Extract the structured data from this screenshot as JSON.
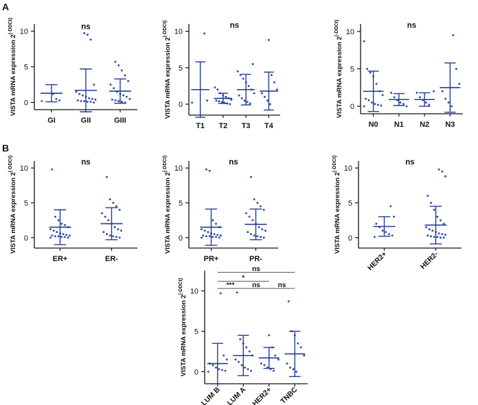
{
  "figure": {
    "panel_labels": [
      "A",
      "B"
    ],
    "ylabel_main": "VISTA mRNA expression 2",
    "ylabel_sup": "(-DDCt)",
    "colors": {
      "points": "#3a4fa8",
      "summary": "#1f3a93",
      "axis": "#111111",
      "sig_line": "#555555"
    }
  },
  "chart_data": [
    {
      "type": "scatter",
      "panel": "A",
      "categories": [
        "GI",
        "GII",
        "GIII"
      ],
      "ylim": [
        -1,
        11
      ],
      "yticks": [
        0,
        5,
        10
      ],
      "yaxis_label": "VISTA mRNA expression 2^(-DDCt)",
      "means": [
        1.3,
        1.7,
        1.6
      ],
      "sd": [
        1.2,
        3.0,
        1.7
      ],
      "points": [
        [
          0.2,
          0.3,
          0.5,
          1.2
        ],
        [
          0.0,
          0.1,
          0.1,
          0.2,
          0.2,
          0.3,
          0.4,
          0.5,
          0.6,
          0.8,
          1.0,
          1.2,
          1.5,
          2.5,
          8.8,
          9.5,
          9.7
        ],
        [
          0.0,
          0.1,
          0.2,
          0.3,
          0.4,
          0.5,
          0.8,
          1.0,
          1.2,
          1.5,
          2.0,
          2.5,
          3.0,
          3.8,
          4.5,
          5.2,
          5.7
        ]
      ],
      "annotations": [
        {
          "text": "ns",
          "x_index": 1,
          "y": 10.3
        }
      ]
    },
    {
      "type": "scatter",
      "panel": "A",
      "categories": [
        "T1",
        "T2",
        "T3",
        "T4"
      ],
      "ylim": [
        -1.5,
        11
      ],
      "yticks": [
        0,
        5,
        10
      ],
      "yaxis_label": "VISTA mRNA expression 2^(-DDCt)",
      "means": [
        2.0,
        0.8,
        2.0,
        1.8
      ],
      "sd": [
        3.8,
        0.7,
        2.1,
        2.6
      ],
      "points": [
        [
          0.2,
          0.5,
          9.7
        ],
        [
          0.0,
          0.1,
          0.2,
          0.3,
          0.4,
          0.5,
          0.6,
          0.8,
          1.0,
          1.2,
          1.5,
          2.0,
          2.3
        ],
        [
          0.1,
          0.3,
          0.5,
          0.8,
          1.2,
          1.5,
          2.0,
          2.5,
          3.0,
          3.5,
          4.0,
          4.5,
          5.5
        ],
        [
          0.0,
          0.5,
          1.0,
          1.5,
          2.0,
          3.0,
          4.0,
          8.8
        ]
      ],
      "annotations": [
        {
          "text": "ns",
          "x_index": 1.5,
          "y": 10.5
        }
      ]
    },
    {
      "type": "scatter",
      "panel": "A",
      "categories": [
        "N0",
        "N1",
        "N2",
        "N3"
      ],
      "ylim": [
        -1,
        11
      ],
      "yticks": [
        0,
        5,
        10
      ],
      "yaxis_label": "VISTA mRNA expression 2^(-DDCt)",
      "means": [
        2.0,
        0.9,
        0.9,
        2.5
      ],
      "sd": [
        2.7,
        0.8,
        0.9,
        3.3
      ],
      "points": [
        [
          0.0,
          0.1,
          0.2,
          0.3,
          0.5,
          0.8,
          1.0,
          1.5,
          2.0,
          3.0,
          4.0,
          4.5,
          5.0,
          8.7
        ],
        [
          0.0,
          0.3,
          0.5,
          0.8,
          1.2,
          1.8
        ],
        [
          0.2,
          0.5,
          0.8,
          1.2,
          1.8,
          2.0
        ],
        [
          0.0,
          0.5,
          1.0,
          2.0,
          3.0,
          5.0,
          9.5
        ]
      ],
      "annotations": [
        {
          "text": "ns",
          "x_index": 1.5,
          "y": 10.5
        }
      ]
    },
    {
      "type": "scatter",
      "panel": "B",
      "categories": [
        "ER+",
        "ER-"
      ],
      "ylim": [
        -1.5,
        11
      ],
      "yticks": [
        0,
        5,
        10
      ],
      "yaxis_label": "VISTA mRNA expression 2^(-DDCt)",
      "means": [
        1.5,
        2.0
      ],
      "sd": [
        2.5,
        2.3
      ],
      "points": [
        [
          0.0,
          0.0,
          0.1,
          0.1,
          0.2,
          0.2,
          0.3,
          0.3,
          0.4,
          0.5,
          0.6,
          0.8,
          1.0,
          1.2,
          1.5,
          1.8,
          2.0,
          2.5,
          3.0,
          9.8
        ],
        [
          0.0,
          0.1,
          0.2,
          0.3,
          0.5,
          0.8,
          1.0,
          1.2,
          1.5,
          2.0,
          2.5,
          3.0,
          3.5,
          4.0,
          4.5,
          5.0,
          5.5,
          8.7
        ]
      ],
      "annotations": [
        {
          "text": "ns",
          "x_index": 0.5,
          "y": 10.5
        }
      ]
    },
    {
      "type": "scatter",
      "panel": "B",
      "categories": [
        "PR+",
        "PR-"
      ],
      "ylim": [
        -1.5,
        11
      ],
      "yticks": [
        0,
        5,
        10
      ],
      "yaxis_label": "VISTA mRNA expression 2^(-DDCt)",
      "means": [
        1.5,
        1.9
      ],
      "sd": [
        2.6,
        2.2
      ],
      "points": [
        [
          0.0,
          0.0,
          0.1,
          0.1,
          0.2,
          0.2,
          0.3,
          0.3,
          0.4,
          0.5,
          0.6,
          0.8,
          1.0,
          1.2,
          1.5,
          2.0,
          2.5,
          9.6,
          9.8
        ],
        [
          0.0,
          0.1,
          0.2,
          0.3,
          0.5,
          0.8,
          1.0,
          1.2,
          1.5,
          2.0,
          2.5,
          3.0,
          3.5,
          4.0,
          4.5,
          5.0,
          5.5,
          8.7
        ]
      ],
      "annotations": [
        {
          "text": "ns",
          "x_index": 0.5,
          "y": 10.5
        }
      ]
    },
    {
      "type": "scatter",
      "panel": "B",
      "categories": [
        "HER2+",
        "HER2-"
      ],
      "ylim": [
        -1.5,
        11
      ],
      "yticks": [
        0,
        5,
        10
      ],
      "yaxis_label": "VISTA mRNA expression 2^(-DDCt)",
      "means": [
        1.6,
        1.8
      ],
      "sd": [
        1.4,
        2.7
      ],
      "points": [
        [
          0.1,
          0.3,
          0.5,
          0.8,
          1.0,
          1.5,
          2.0,
          3.0,
          4.5
        ],
        [
          0.0,
          0.0,
          0.1,
          0.1,
          0.2,
          0.3,
          0.4,
          0.5,
          0.6,
          0.8,
          1.0,
          1.2,
          1.5,
          2.0,
          2.5,
          3.0,
          4.0,
          5.0,
          6.0,
          8.8,
          9.5,
          9.8
        ]
      ],
      "annotations": [
        {
          "text": "ns",
          "x_index": 0.5,
          "y": 10.5
        }
      ]
    },
    {
      "type": "scatter",
      "panel": "B",
      "categories": [
        "LUM B",
        "LUM A",
        "HER2+",
        "TNBC"
      ],
      "ylim": [
        -1.5,
        12.5
      ],
      "yticks": [
        0,
        5,
        10
      ],
      "yaxis_label": "VISTA mRNA expression 2^(-DDCt)",
      "means": [
        1.0,
        2.0,
        1.7,
        2.2
      ],
      "sd": [
        2.5,
        2.5,
        1.3,
        2.8
      ],
      "points": [
        [
          0.0,
          0.1,
          0.2,
          0.3,
          0.5,
          0.8,
          1.0,
          1.5,
          2.0,
          9.7
        ],
        [
          0.1,
          0.3,
          0.5,
          0.8,
          1.2,
          1.5,
          2.0,
          2.5,
          3.0,
          3.5,
          4.0,
          9.8
        ],
        [
          0.1,
          0.3,
          0.5,
          0.8,
          1.0,
          1.5,
          2.0,
          3.0,
          4.5
        ],
        [
          0.0,
          0.3,
          0.5,
          1.0,
          2.0,
          3.0,
          3.5,
          4.5,
          5.0,
          8.7
        ]
      ],
      "comparisons": [
        {
          "from": 0,
          "to": 3,
          "label": "ns",
          "y": 12.3
        },
        {
          "from": 0,
          "to": 2,
          "label": "*",
          "y": 11.2
        },
        {
          "from": 0,
          "to": 1,
          "label": "***",
          "y": 10.3
        },
        {
          "from": 1,
          "to": 2,
          "label": "ns",
          "y": 10.3
        },
        {
          "from": 2,
          "to": 3,
          "label": "ns",
          "y": 10.3
        }
      ]
    }
  ]
}
